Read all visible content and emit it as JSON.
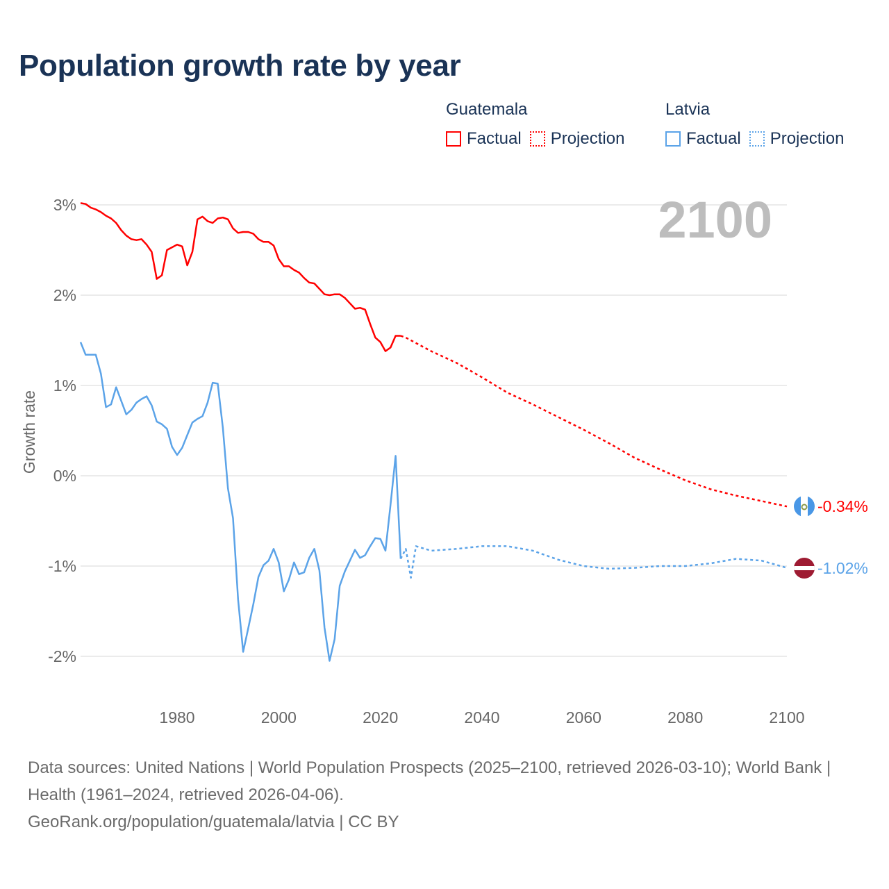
{
  "title": "Population growth rate by year",
  "year_display": "2100",
  "legend": {
    "groups": [
      {
        "name": "Guatemala",
        "factual": "Factual",
        "projection": "Projection",
        "color": "#ff0000"
      },
      {
        "name": "Latvia",
        "factual": "Factual",
        "projection": "Projection",
        "color": "#5ba3e8"
      }
    ]
  },
  "end_labels": {
    "guatemala": "-0.34%",
    "latvia": "-1.02%"
  },
  "footer": {
    "sources": "Data sources: United Nations | World Population Prospects (2025–2100, retrieved 2026-03-10); World Bank | Health (1961–2024, retrieved 2026-04-06).",
    "credit": "GeoRank.org/population/guatemala/latvia | CC BY"
  },
  "chart_data": {
    "type": "line",
    "title": "Population growth rate by year",
    "xlabel": "",
    "ylabel": "Growth rate",
    "xlim": [
      1961,
      2100
    ],
    "ylim": [
      -2.5,
      3.1
    ],
    "x_ticks": [
      1980,
      2000,
      2020,
      2040,
      2060,
      2080,
      2100
    ],
    "x_tick_labels": [
      "1980",
      "2000",
      "2020",
      "2040",
      "2060",
      "2080",
      "2100"
    ],
    "y_ticks": [
      3,
      2,
      1,
      0,
      -1,
      -2
    ],
    "y_tick_labels": [
      "3%",
      "2%",
      "1%",
      "0%",
      "-1%",
      "-2%"
    ],
    "grid": true,
    "legend_position": "top-right",
    "series": [
      {
        "name": "Guatemala Factual",
        "color": "#ff0000",
        "dash": false,
        "x": [
          1961,
          1962,
          1963,
          1964,
          1965,
          1966,
          1967,
          1968,
          1969,
          1970,
          1971,
          1972,
          1973,
          1974,
          1975,
          1976,
          1977,
          1978,
          1979,
          1980,
          1981,
          1982,
          1983,
          1984,
          1985,
          1986,
          1987,
          1988,
          1989,
          1990,
          1991,
          1992,
          1993,
          1994,
          1995,
          1996,
          1997,
          1998,
          1999,
          2000,
          2001,
          2002,
          2003,
          2004,
          2005,
          2006,
          2007,
          2008,
          2009,
          2010,
          2011,
          2012,
          2013,
          2014,
          2015,
          2016,
          2017,
          2018,
          2019,
          2020,
          2021,
          2022,
          2023,
          2024
        ],
        "values": [
          3.02,
          3.01,
          2.97,
          2.95,
          2.92,
          2.88,
          2.85,
          2.8,
          2.72,
          2.66,
          2.62,
          2.61,
          2.62,
          2.56,
          2.48,
          2.18,
          2.22,
          2.5,
          2.53,
          2.56,
          2.54,
          2.33,
          2.48,
          2.84,
          2.87,
          2.82,
          2.8,
          2.85,
          2.86,
          2.84,
          2.74,
          2.69,
          2.7,
          2.7,
          2.68,
          2.62,
          2.59,
          2.59,
          2.55,
          2.4,
          2.32,
          2.32,
          2.28,
          2.25,
          2.19,
          2.14,
          2.13,
          2.07,
          2.01,
          2.0,
          2.01,
          2.01,
          1.97,
          1.91,
          1.85,
          1.86,
          1.84,
          1.68,
          1.53,
          1.48,
          1.38,
          1.42,
          1.55,
          1.55
        ]
      },
      {
        "name": "Guatemala Projection",
        "color": "#ff0000",
        "dash": true,
        "x": [
          2024,
          2025,
          2030,
          2035,
          2040,
          2045,
          2050,
          2055,
          2060,
          2065,
          2070,
          2075,
          2080,
          2085,
          2090,
          2095,
          2100
        ],
        "values": [
          1.55,
          1.53,
          1.38,
          1.25,
          1.09,
          0.92,
          0.79,
          0.65,
          0.51,
          0.36,
          0.2,
          0.07,
          -0.05,
          -0.15,
          -0.22,
          -0.28,
          -0.34
        ]
      },
      {
        "name": "Latvia Factual",
        "color": "#5ba3e8",
        "dash": false,
        "x": [
          1961,
          1962,
          1963,
          1964,
          1965,
          1966,
          1967,
          1968,
          1969,
          1970,
          1971,
          1972,
          1973,
          1974,
          1975,
          1976,
          1977,
          1978,
          1979,
          1980,
          1981,
          1982,
          1983,
          1984,
          1985,
          1986,
          1987,
          1988,
          1989,
          1990,
          1991,
          1992,
          1993,
          1994,
          1995,
          1996,
          1997,
          1998,
          1999,
          2000,
          2001,
          2002,
          2003,
          2004,
          2005,
          2006,
          2007,
          2008,
          2009,
          2010,
          2011,
          2012,
          2013,
          2014,
          2015,
          2016,
          2017,
          2018,
          2019,
          2020,
          2021,
          2022,
          2023,
          2024
        ],
        "values": [
          1.48,
          1.34,
          1.34,
          1.34,
          1.13,
          0.76,
          0.79,
          0.98,
          0.83,
          0.68,
          0.73,
          0.81,
          0.85,
          0.88,
          0.78,
          0.6,
          0.57,
          0.52,
          0.32,
          0.23,
          0.31,
          0.45,
          0.59,
          0.63,
          0.66,
          0.81,
          1.03,
          1.02,
          0.53,
          -0.14,
          -0.47,
          -1.37,
          -1.95,
          -1.69,
          -1.42,
          -1.12,
          -0.99,
          -0.94,
          -0.81,
          -0.96,
          -1.28,
          -1.15,
          -0.96,
          -1.09,
          -1.07,
          -0.91,
          -0.81,
          -1.05,
          -1.68,
          -2.05,
          -1.81,
          -1.22,
          -1.06,
          -0.94,
          -0.82,
          -0.91,
          -0.88,
          -0.78,
          -0.69,
          -0.7,
          -0.83,
          -0.32,
          0.22,
          -0.92
        ]
      },
      {
        "name": "Latvia Projection",
        "color": "#5ba3e8",
        "dash": true,
        "x": [
          2024,
          2025,
          2026,
          2027,
          2030,
          2035,
          2040,
          2045,
          2050,
          2055,
          2060,
          2065,
          2070,
          2075,
          2080,
          2085,
          2090,
          2095,
          2100
        ],
        "values": [
          -0.92,
          -0.81,
          -1.13,
          -0.78,
          -0.83,
          -0.81,
          -0.78,
          -0.78,
          -0.83,
          -0.93,
          -1.0,
          -1.03,
          -1.02,
          -1.0,
          -1.0,
          -0.97,
          -0.92,
          -0.94,
          -1.02
        ]
      }
    ]
  }
}
